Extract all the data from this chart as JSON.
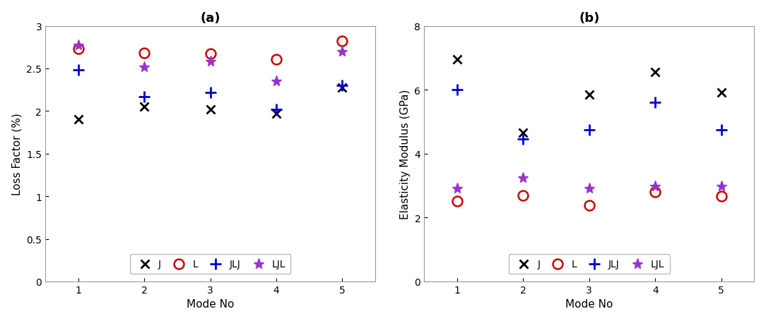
{
  "modes": [
    1,
    2,
    3,
    4,
    5
  ],
  "loss_factor": {
    "J": [
      1.9,
      2.05,
      2.02,
      1.97,
      2.28
    ],
    "L": [
      2.73,
      2.68,
      2.67,
      2.61,
      2.82
    ],
    "JLJ": [
      2.48,
      2.17,
      2.22,
      2.02,
      2.3
    ],
    "LJL": [
      2.77,
      2.52,
      2.58,
      2.35,
      2.7
    ]
  },
  "elasticity": {
    "J": [
      6.95,
      4.65,
      5.85,
      6.55,
      5.92
    ],
    "L": [
      2.52,
      2.7,
      2.38,
      2.8,
      2.68
    ],
    "JLJ": [
      6.0,
      4.45,
      4.75,
      5.6,
      4.75
    ],
    "LJL": [
      2.92,
      3.25,
      2.92,
      2.98,
      2.98
    ]
  },
  "colors": {
    "J": "#000000",
    "L": "#cc0000",
    "JLJ": "#0000cc",
    "LJL": "#9933cc"
  },
  "title_a": "(a)",
  "title_b": "(b)",
  "ylabel_a": "Loss Factor (%)",
  "ylabel_b": "Elasticity Modulus (GPa)",
  "xlabel": "Mode No",
  "ylim_a": [
    0,
    3.0
  ],
  "ylim_b": [
    0,
    8.0
  ],
  "yticks_a": [
    0,
    0.5,
    1.0,
    1.5,
    2.0,
    2.5,
    3.0
  ],
  "yticks_b": [
    0,
    2,
    4,
    6,
    8
  ],
  "legend_labels": [
    "J",
    "L",
    "JLJ",
    "LJL"
  ]
}
